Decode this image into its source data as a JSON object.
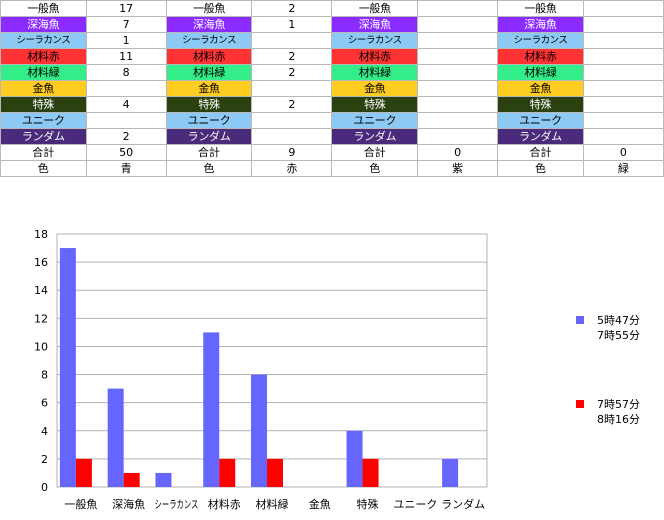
{
  "groups": [
    {
      "rows": [
        {
          "label": "一般魚",
          "value": "17"
        },
        {
          "label": "深海魚",
          "value": "7"
        },
        {
          "label": "シーラカンス",
          "value": "1"
        },
        {
          "label": "材料赤",
          "value": "11"
        },
        {
          "label": "材料緑",
          "value": "8"
        },
        {
          "label": "金魚",
          "value": ""
        },
        {
          "label": "特殊",
          "value": "4"
        },
        {
          "label": "ユニーク",
          "value": ""
        },
        {
          "label": "ランダム",
          "value": "2"
        }
      ],
      "total_label": "合計",
      "total": "50",
      "color_label": "色",
      "color": "青"
    },
    {
      "rows": [
        {
          "label": "一般魚",
          "value": "2"
        },
        {
          "label": "深海魚",
          "value": "1"
        },
        {
          "label": "シーラカンス",
          "value": ""
        },
        {
          "label": "材料赤",
          "value": "2"
        },
        {
          "label": "材料緑",
          "value": "2"
        },
        {
          "label": "金魚",
          "value": ""
        },
        {
          "label": "特殊",
          "value": "2"
        },
        {
          "label": "ユニーク",
          "value": ""
        },
        {
          "label": "ランダム",
          "value": ""
        }
      ],
      "total_label": "合計",
      "total": "9",
      "color_label": "色",
      "color": "赤"
    },
    {
      "rows": [
        {
          "label": "一般魚",
          "value": ""
        },
        {
          "label": "深海魚",
          "value": ""
        },
        {
          "label": "シーラカンス",
          "value": ""
        },
        {
          "label": "材料赤",
          "value": ""
        },
        {
          "label": "材料緑",
          "value": ""
        },
        {
          "label": "金魚",
          "value": ""
        },
        {
          "label": "特殊",
          "value": ""
        },
        {
          "label": "ユニーク",
          "value": ""
        },
        {
          "label": "ランダム",
          "value": ""
        }
      ],
      "total_label": "合計",
      "total": "0",
      "color_label": "色",
      "color": "紫"
    },
    {
      "rows": [
        {
          "label": "一般魚",
          "value": ""
        },
        {
          "label": "深海魚",
          "value": ""
        },
        {
          "label": "シーラカンス",
          "value": ""
        },
        {
          "label": "材料赤",
          "value": ""
        },
        {
          "label": "材料緑",
          "value": ""
        },
        {
          "label": "金魚",
          "value": ""
        },
        {
          "label": "特殊",
          "value": ""
        },
        {
          "label": "ユニーク",
          "value": ""
        },
        {
          "label": "ランダム",
          "value": ""
        }
      ],
      "total_label": "合計",
      "total": "0",
      "color_label": "色",
      "color": "緑"
    }
  ],
  "row_styles": [
    {
      "bg": "#ffffff",
      "fg": "#000000"
    },
    {
      "bg": "#8a2bff",
      "fg": "#ffffff"
    },
    {
      "bg": "#8ccaf5",
      "fg": "#000000"
    },
    {
      "bg": "#ff3333",
      "fg": "#000000"
    },
    {
      "bg": "#33ee88",
      "fg": "#000000"
    },
    {
      "bg": "#ffcc22",
      "fg": "#000000"
    },
    {
      "bg": "#2b4210",
      "fg": "#ffffff"
    },
    {
      "bg": "#8ccaf5",
      "fg": "#000000"
    },
    {
      "bg": "#4a2a7a",
      "fg": "#ffffff"
    }
  ],
  "chart_data": {
    "type": "bar",
    "categories": [
      "一般魚",
      "深海魚",
      "シーラカンス",
      "材料赤",
      "材料緑",
      "金魚",
      "特殊",
      "ユニーク",
      "ランダム"
    ],
    "series": [
      {
        "name": "5時47分\n7時55分",
        "color": "#6666ff",
        "values": [
          17,
          7,
          1,
          11,
          8,
          0,
          4,
          0,
          2
        ]
      },
      {
        "name": "7時57分\n8時16分",
        "color": "#ff0000",
        "values": [
          2,
          1,
          0,
          2,
          2,
          0,
          2,
          0,
          0
        ]
      }
    ],
    "ylim": [
      0,
      18
    ],
    "yticks": [
      0,
      2,
      4,
      6,
      8,
      10,
      12,
      14,
      16,
      18
    ],
    "grid": true,
    "legend_position": "right"
  }
}
